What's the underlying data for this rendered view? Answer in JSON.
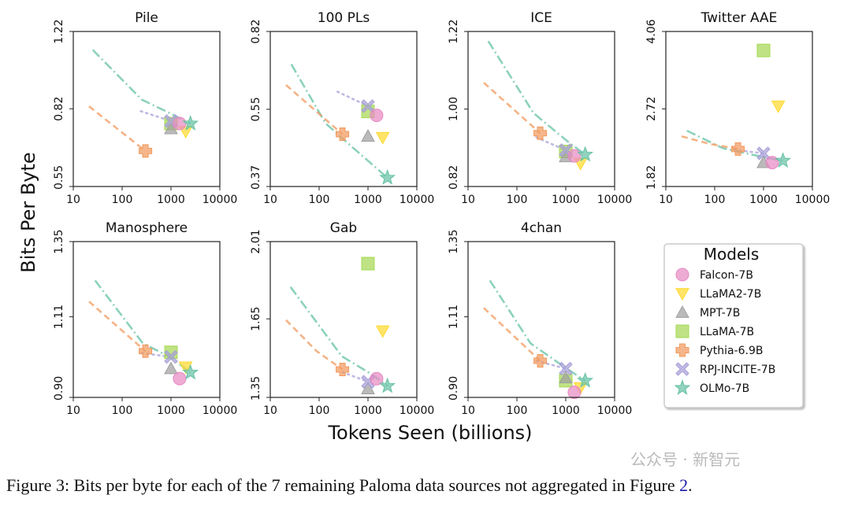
{
  "chart_data": {
    "type": "scatter",
    "ylabel": "Bits Per Byte",
    "xlabel": "Tokens Seen (billions)",
    "xscale": "log",
    "yscale": "log",
    "xlim": [
      10,
      10000
    ],
    "xticks": [
      "10",
      "100",
      "1000",
      "10000"
    ],
    "legend": {
      "title": "Models",
      "placement": "bottom-right",
      "entries": [
        {
          "name": "Falcon-7B",
          "marker": "circle",
          "color": "#e78ac3"
        },
        {
          "name": "LLaMA2-7B",
          "marker": "triangle-down",
          "color": "#ffd92f"
        },
        {
          "name": "MPT-7B",
          "marker": "triangle-up",
          "color": "#a0a0a0"
        },
        {
          "name": "LLaMA-7B",
          "marker": "square",
          "color": "#a6d854"
        },
        {
          "name": "Pythia-6.9B",
          "marker": "plus",
          "color": "#f29a5e"
        },
        {
          "name": "RPJ-INCITE-7B",
          "marker": "x",
          "color": "#a8a0d8"
        },
        {
          "name": "OLMo-7B",
          "marker": "star",
          "color": "#66c2a5"
        }
      ]
    },
    "panels": [
      {
        "title": "Pile",
        "ylim": [
          0.55,
          1.22
        ],
        "yticks": [
          "0.55",
          "0.82",
          "1.22"
        ],
        "curves": {
          "OLMo-7B": [
            [
              25,
              1.11
            ],
            [
              251,
              0.86
            ],
            [
              980,
              0.8
            ],
            [
              2500,
              0.76
            ]
          ],
          "Pythia-6.9B": [
            [
              21,
              0.83
            ],
            [
              300,
              0.66
            ]
          ],
          "RPJ-INCITE-7B": [
            [
              240,
              0.81
            ],
            [
              1000,
              0.77
            ]
          ]
        },
        "points": {
          "Falcon-7B": [
            1500,
            0.76
          ],
          "LLaMA2-7B": [
            2000,
            0.73
          ],
          "MPT-7B": [
            1000,
            0.74
          ],
          "LLaMA-7B": [
            1000,
            0.76
          ],
          "Pythia-6.9B": [
            300,
            0.66
          ],
          "RPJ-INCITE-7B": [
            1000,
            0.77
          ],
          "OLMo-7B": [
            2500,
            0.76
          ]
        }
      },
      {
        "title": "100 PLs",
        "ylim": [
          0.37,
          0.82
        ],
        "yticks": [
          "0.37",
          "0.55",
          "0.82"
        ],
        "curves": {
          "OLMo-7B": [
            [
              27,
              0.693
            ],
            [
              135,
              0.512
            ],
            [
              467,
              0.454
            ],
            [
              2500,
              0.387
            ]
          ],
          "Pythia-6.9B": [
            [
              21,
              0.623
            ],
            [
              300,
              0.484
            ]
          ],
          "RPJ-INCITE-7B": [
            [
              237,
              0.602
            ],
            [
              1000,
              0.559
            ]
          ]
        },
        "points": {
          "Falcon-7B": [
            1500,
            0.533
          ],
          "LLaMA2-7B": [
            2000,
            0.476
          ],
          "MPT-7B": [
            1000,
            0.479
          ],
          "LLaMA-7B": [
            1000,
            0.544
          ],
          "Pythia-6.9B": [
            300,
            0.484
          ],
          "RPJ-INCITE-7B": [
            1000,
            0.559
          ],
          "OLMo-7B": [
            2500,
            0.387
          ]
        }
      },
      {
        "title": "ICE",
        "ylim": [
          0.82,
          1.22
        ],
        "yticks": [
          "0.82",
          "1.00",
          "1.22"
        ],
        "curves": {
          "OLMo-7B": [
            [
              26,
              1.19
            ],
            [
              218,
              0.99
            ],
            [
              1100,
              0.92
            ],
            [
              2500,
              0.89
            ]
          ],
          "Pythia-6.9B": [
            [
              21,
              1.07
            ],
            [
              300,
              0.94
            ]
          ],
          "RPJ-INCITE-7B": [
            [
              250,
              0.93
            ],
            [
              1000,
              0.9
            ]
          ]
        },
        "points": {
          "Falcon-7B": [
            1500,
            0.887
          ],
          "LLaMA2-7B": [
            2000,
            0.87
          ],
          "MPT-7B": [
            1000,
            0.885
          ],
          "LLaMA-7B": [
            1000,
            0.897
          ],
          "Pythia-6.9B": [
            300,
            0.94
          ],
          "RPJ-INCITE-7B": [
            1000,
            0.9
          ],
          "OLMo-7B": [
            2500,
            0.89
          ]
        }
      },
      {
        "title": "Twitter AAE",
        "ylim": [
          1.82,
          4.06
        ],
        "yticks": [
          "1.82",
          "2.72",
          "4.06"
        ],
        "curves": {
          "OLMo-7B": [
            [
              27,
              2.43
            ],
            [
              145,
              2.22
            ],
            [
              650,
              2.14
            ],
            [
              2500,
              2.08
            ]
          ],
          "Pythia-6.9B": [
            [
              21,
              2.36
            ],
            [
              78,
              2.27
            ],
            [
              300,
              2.21
            ]
          ],
          "RPJ-INCITE-7B": [
            [
              250,
              2.2
            ],
            [
              1000,
              2.16
            ]
          ]
        },
        "points": {
          "Falcon-7B": [
            1500,
            2.06
          ],
          "LLaMA2-7B": [
            2000,
            2.76
          ],
          "MPT-7B": [
            1000,
            2.06
          ],
          "LLaMA-7B": [
            1000,
            3.68
          ],
          "Pythia-6.9B": [
            300,
            2.21
          ],
          "RPJ-INCITE-7B": [
            1000,
            2.16
          ],
          "OLMo-7B": [
            2500,
            2.08
          ]
        }
      },
      {
        "title": "Manosphere",
        "ylim": [
          0.9,
          1.35
        ],
        "yticks": [
          "0.90",
          "1.11",
          "1.35"
        ],
        "curves": {
          "OLMo-7B": [
            [
              28,
              1.22
            ],
            [
              266,
              1.036
            ],
            [
              1050,
              0.997
            ],
            [
              2500,
              0.96
            ]
          ],
          "Pythia-6.9B": [
            [
              21,
              1.155
            ],
            [
              300,
              1.015
            ]
          ],
          "RPJ-INCITE-7B": [
            [
              250,
              1.01
            ],
            [
              1000,
              1.0
            ]
          ]
        },
        "points": {
          "Falcon-7B": [
            1500,
            0.945
          ],
          "LLaMA2-7B": [
            2000,
            0.974
          ],
          "MPT-7B": [
            1000,
            0.97
          ],
          "LLaMA-7B": [
            1000,
            1.012
          ],
          "Pythia-6.9B": [
            300,
            1.015
          ],
          "RPJ-INCITE-7B": [
            1000,
            1.0
          ],
          "OLMo-7B": [
            2500,
            0.96
          ]
        }
      },
      {
        "title": "Gab",
        "ylim": [
          1.35,
          2.01
        ],
        "yticks": [
          "1.35",
          "1.65",
          "2.01"
        ],
        "curves": {
          "OLMo-7B": [
            [
              26,
              1.79
            ],
            [
              290,
              1.5
            ],
            [
              1240,
              1.43
            ],
            [
              2500,
              1.39
            ]
          ],
          "Pythia-6.9B": [
            [
              21,
              1.645
            ],
            [
              88,
              1.52
            ],
            [
              300,
              1.45
            ]
          ],
          "RPJ-INCITE-7B": [
            [
              300,
              1.44
            ],
            [
              1000,
              1.405
            ]
          ]
        },
        "points": {
          "Falcon-7B": [
            1500,
            1.416
          ],
          "LLaMA2-7B": [
            2000,
            1.6
          ],
          "MPT-7B": [
            1000,
            1.38
          ],
          "LLaMA-7B": [
            1000,
            1.9
          ],
          "Pythia-6.9B": [
            300,
            1.45
          ],
          "RPJ-INCITE-7B": [
            1000,
            1.405
          ],
          "OLMo-7B": [
            2500,
            1.39
          ]
        }
      },
      {
        "title": "4chan",
        "ylim": [
          0.9,
          1.35
        ],
        "yticks": [
          "0.90",
          "1.11",
          "1.35"
        ],
        "curves": {
          "OLMo-7B": [
            [
              28,
              1.22
            ],
            [
              190,
              1.036
            ],
            [
              1050,
              0.97
            ],
            [
              2500,
              0.94
            ]
          ],
          "Pythia-6.9B": [
            [
              21,
              1.136
            ],
            [
              300,
              0.99
            ]
          ],
          "RPJ-INCITE-7B": [
            [
              250,
              0.99
            ],
            [
              1000,
              0.97
            ]
          ]
        },
        "points": {
          "Falcon-7B": [
            1500,
            0.912
          ],
          "LLaMA2-7B": [
            2000,
            0.923
          ],
          "MPT-7B": [
            1000,
            0.947
          ],
          "LLaMA-7B": [
            1000,
            0.94
          ],
          "Pythia-6.9B": [
            300,
            0.99
          ],
          "RPJ-INCITE-7B": [
            1000,
            0.97
          ],
          "OLMo-7B": [
            2500,
            0.94
          ]
        }
      }
    ]
  },
  "caption": {
    "text": "Figure 3: Bits per byte for each of the 7 remaining Paloma data sources not aggregated in Figure ",
    "ref": "2",
    "end": "."
  },
  "watermark": "公众号 · 新智元"
}
